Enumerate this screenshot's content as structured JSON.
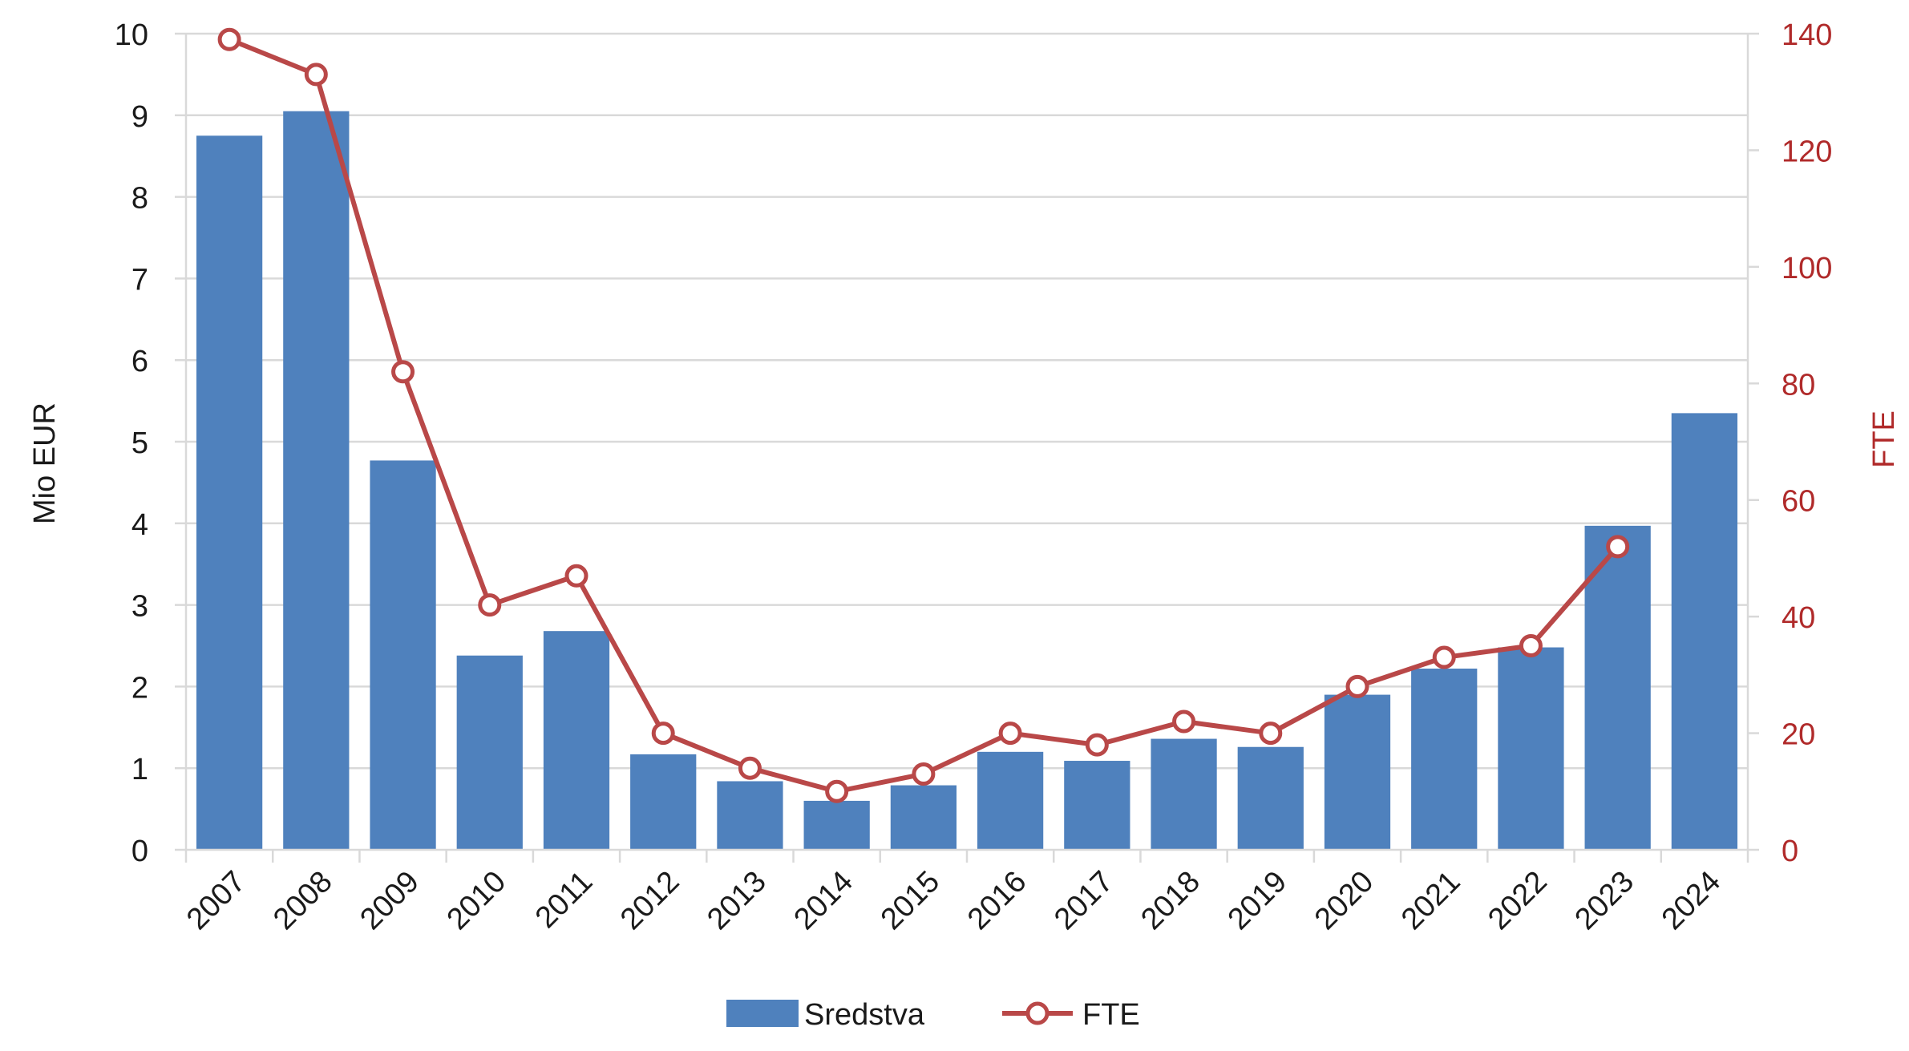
{
  "colors": {
    "bar": "#4F81BD",
    "line": "#B94848",
    "grid": "#D9D9D9",
    "axis_text": "#1A1A1A",
    "right_axis_text": "#B02A2A"
  },
  "chart_data": {
    "type": "bar",
    "categories": [
      "2007",
      "2008",
      "2009",
      "2010",
      "2011",
      "2012",
      "2013",
      "2014",
      "2015",
      "2016",
      "2017",
      "2018",
      "2019",
      "2020",
      "2021",
      "2022",
      "2023",
      "2024"
    ],
    "series": [
      {
        "name": "Sredstva",
        "type": "bar",
        "axis": "left",
        "values": [
          8.75,
          9.05,
          4.77,
          2.38,
          2.68,
          1.17,
          0.84,
          0.6,
          0.79,
          1.2,
          1.09,
          1.36,
          1.26,
          1.9,
          2.22,
          2.48,
          3.97,
          5.35
        ]
      },
      {
        "name": "FTE",
        "type": "line",
        "axis": "right",
        "markers": "hollow-circle",
        "values": [
          139,
          133,
          82,
          42,
          47,
          20,
          14,
          10,
          13,
          20,
          18,
          22,
          20,
          28,
          33,
          35,
          52,
          null
        ]
      }
    ],
    "ylabel": "Mio EUR",
    "ylabel_right": "FTE",
    "ylim": [
      0,
      10
    ],
    "ylim_right": [
      0,
      140
    ],
    "yticks": [
      "0",
      "1",
      "2",
      "3",
      "4",
      "5",
      "6",
      "7",
      "8",
      "9",
      "10"
    ],
    "yticks_right": [
      "0",
      "20",
      "40",
      "60",
      "80",
      "100",
      "120",
      "140"
    ],
    "grid": true,
    "legend_position": "bottom-center"
  }
}
